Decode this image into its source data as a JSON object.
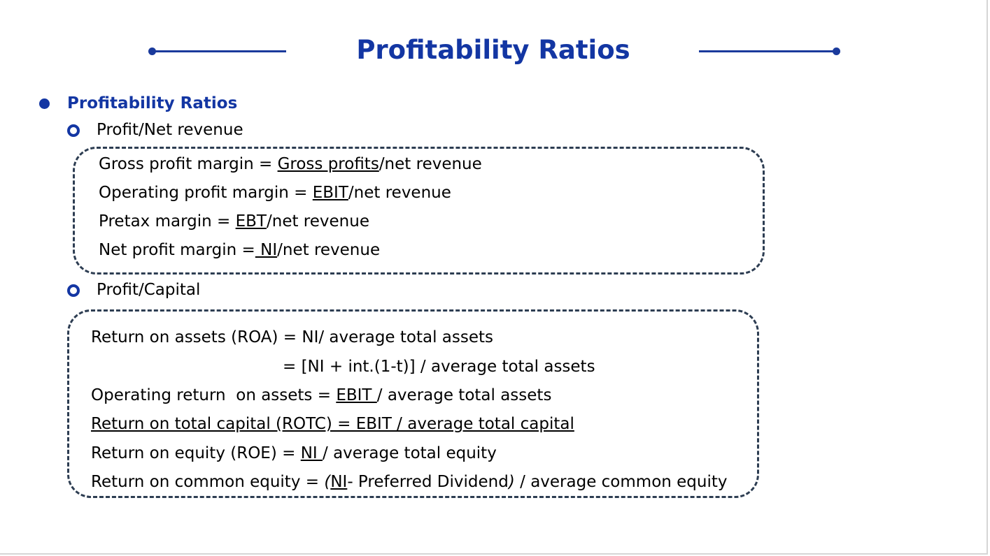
{
  "title": "Profitability Ratios",
  "heading": "Profitability Ratios",
  "section1": {
    "label": "Profit/Net revenue",
    "lines": [
      {
        "a": "Gross profit margin = ",
        "u": "Gross profits",
        "b": "/net revenue"
      },
      {
        "a": "Operating profit margin = ",
        "u": "EBIT",
        "b": "/net revenue"
      },
      {
        "a": "Pretax margin = ",
        "u": "EBT",
        "b": "/net revenue"
      },
      {
        "a": "Net profit margin =",
        "u": " NI",
        "b": "/net revenue"
      }
    ]
  },
  "section2": {
    "label": "Profit/Capital",
    "roa": "Return on assets (ROA) = NI/ average total assets",
    "roa_alt": "= [NI + int.(1-t)] / average total assets",
    "opr": {
      "a": "Operating return  on assets = ",
      "u": "EBIT ",
      "b": "/ average total assets"
    },
    "rotc": "Return on total capital (ROTC) = EBIT / average total capital",
    "roe": {
      "a": "Return on equity (ROE) = ",
      "u": "NI ",
      "b": "/ average total equity"
    },
    "roce": {
      "a": "Return on common equity = ",
      "p1": "(",
      "u": "NI",
      "c": "- Preferred Dividend",
      "p2": ")",
      "b": " / average common equity"
    }
  }
}
